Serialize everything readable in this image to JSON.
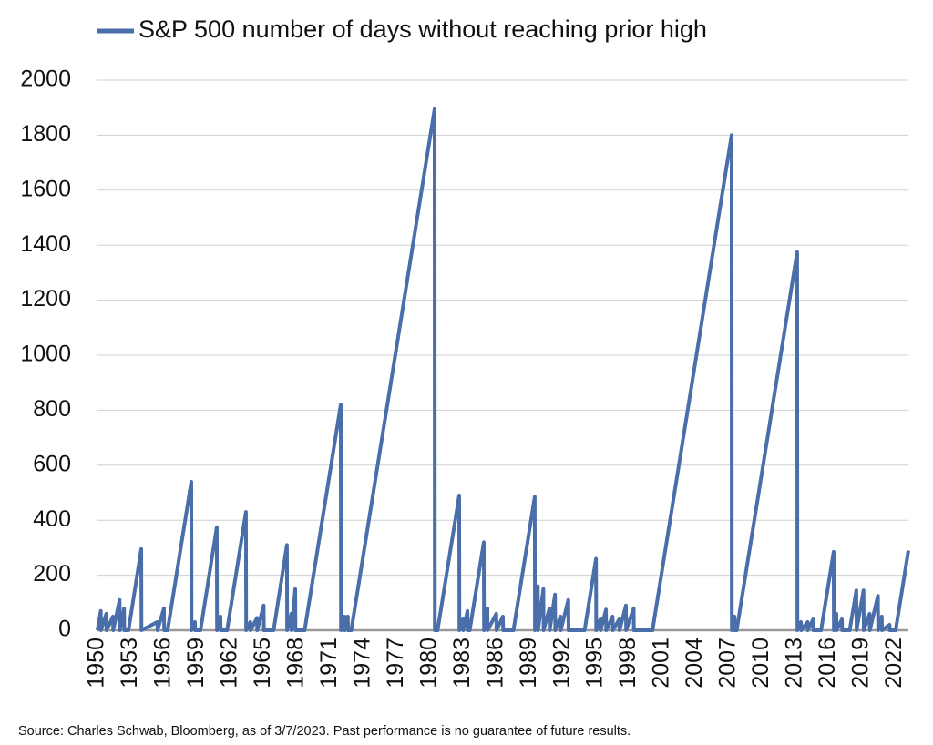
{
  "chart_data": {
    "type": "line",
    "series": [
      {
        "name": "S&P 500 number of days without reaching prior high",
        "color": "#4a6ea9",
        "x": [
          1950.0,
          1950.3,
          1950.32,
          1950.8,
          1950.82,
          1951.4,
          1951.42,
          1952.0,
          1952.02,
          1952.4,
          1952.42,
          1952.8,
          1953.95,
          1953.97,
          1955.4,
          1955.42,
          1956.0,
          1956.02,
          1956.33,
          1958.47,
          1958.49,
          1958.8,
          1958.82,
          1959.3,
          1960.77,
          1960.79,
          1961.1,
          1961.12,
          1961.7,
          1963.4,
          1963.42,
          1963.8,
          1963.82,
          1964.4,
          1964.42,
          1965.0,
          1965.02,
          1965.9,
          1967.1,
          1967.12,
          1967.5,
          1967.52,
          1967.85,
          1967.87,
          1968.7,
          1971.96,
          1971.98,
          1972.3,
          1972.32,
          1972.6,
          1972.62,
          1972.91,
          1980.43,
          1980.45,
          1980.7,
          1982.65,
          1982.67,
          1983.0,
          1983.02,
          1983.4,
          1983.42,
          1983.6,
          1984.87,
          1984.89,
          1985.2,
          1985.22,
          1986.0,
          1986.02,
          1986.6,
          1986.62,
          1987.55,
          1989.47,
          1989.49,
          1989.75,
          1989.77,
          1990.25,
          1990.27,
          1990.8,
          1990.82,
          1991.3,
          1991.32,
          1991.8,
          1991.82,
          1992.5,
          1992.52,
          1993.97,
          1995.0,
          1995.02,
          1995.4,
          1995.42,
          1995.9,
          1995.92,
          1996.5,
          1996.52,
          1997.1,
          1997.12,
          1997.7,
          1997.72,
          1998.4,
          1998.42,
          2000.1,
          2007.24,
          2007.26,
          2007.5,
          2007.52,
          2007.7,
          2013.16,
          2013.18,
          2013.5,
          2013.52,
          2014.1,
          2014.12,
          2014.6,
          2014.62,
          2015.32,
          2016.45,
          2016.47,
          2016.7,
          2016.72,
          2017.2,
          2017.22,
          2017.9,
          2018.5,
          2018.52,
          2019.15,
          2019.17,
          2019.7,
          2019.72,
          2020.45,
          2020.47,
          2020.8,
          2020.82,
          2021.5,
          2021.52,
          2022.05,
          2023.2
        ],
        "values": [
          0,
          70,
          0,
          60,
          0,
          50,
          0,
          110,
          0,
          80,
          0,
          0,
          295,
          0,
          30,
          0,
          80,
          0,
          0,
          540,
          0,
          30,
          0,
          0,
          375,
          0,
          50,
          0,
          0,
          430,
          0,
          30,
          0,
          45,
          0,
          90,
          0,
          0,
          310,
          0,
          60,
          0,
          150,
          0,
          0,
          820,
          0,
          50,
          0,
          50,
          0,
          0,
          1895,
          0,
          0,
          490,
          0,
          40,
          0,
          70,
          0,
          0,
          320,
          0,
          80,
          0,
          60,
          0,
          50,
          0,
          0,
          485,
          0,
          160,
          0,
          150,
          0,
          80,
          0,
          130,
          0,
          50,
          0,
          110,
          0,
          0,
          260,
          0,
          40,
          0,
          75,
          0,
          50,
          0,
          40,
          0,
          90,
          0,
          80,
          0,
          0,
          1800,
          0,
          50,
          0,
          0,
          1375,
          0,
          30,
          0,
          30,
          0,
          40,
          0,
          0,
          285,
          0,
          60,
          0,
          40,
          0,
          0,
          145,
          0,
          145,
          0,
          60,
          0,
          125,
          0,
          50,
          0,
          20,
          0,
          0,
          290
        ]
      }
    ],
    "xlim": [
      1950,
      2023.2
    ],
    "xticks": [
      1950,
      1953,
      1956,
      1959,
      1962,
      1965,
      1968,
      1971,
      1974,
      1977,
      1980,
      1983,
      1986,
      1989,
      1992,
      1995,
      1998,
      2001,
      2004,
      2007,
      2010,
      2013,
      2016,
      2019,
      2022
    ],
    "ylim": [
      0,
      2000
    ],
    "yticks": [
      0,
      200,
      400,
      600,
      800,
      1000,
      1200,
      1400,
      1600,
      1800,
      2000
    ],
    "grid": true,
    "legend": "top",
    "source": "Source: Charles Schwab, Bloomberg, as of 3/7/2023.  Past performance is no guarantee of future results."
  }
}
